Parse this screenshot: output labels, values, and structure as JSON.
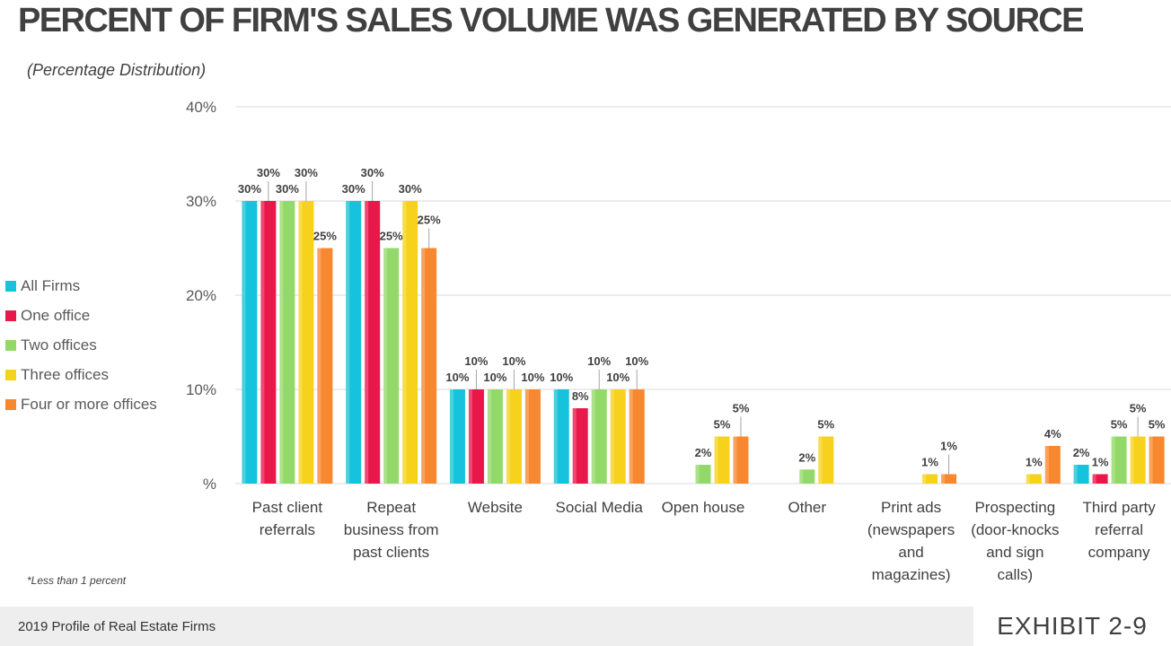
{
  "chart_data": {
    "type": "bar",
    "title": "PERCENT OF FIRM'S SALES VOLUME WAS GENERATED BY SOURCE",
    "subtitle": "(Percentage Distribution)",
    "xlabel": "",
    "ylabel": "",
    "ylim": [
      0,
      40
    ],
    "yticks": [
      0,
      10,
      20,
      30,
      40
    ],
    "ytick_labels": [
      "%",
      "10%",
      "20%",
      "30%",
      "40%"
    ],
    "grid": true,
    "legend_position": "left",
    "categories": [
      [
        "Past client",
        "referrals"
      ],
      [
        "Repeat",
        "business from",
        "past clients"
      ],
      [
        "Website"
      ],
      [
        "Social Media"
      ],
      [
        "Open house"
      ],
      [
        "Other"
      ],
      [
        "Print ads",
        "(newspapers",
        "and",
        "magazines)"
      ],
      [
        "Prospecting",
        "(door-knocks",
        "and sign",
        "calls)"
      ],
      [
        "Third party",
        "referral",
        "company"
      ]
    ],
    "series": [
      {
        "name": "All Firms",
        "color": "#17c3dc",
        "values": [
          30,
          30,
          10,
          10,
          null,
          null,
          null,
          null,
          2
        ],
        "labels": [
          "30%",
          "30%",
          "10%",
          "10%",
          "",
          "",
          "",
          "",
          "2%"
        ]
      },
      {
        "name": "One office",
        "color": "#e8184a",
        "values": [
          30,
          30,
          10,
          8,
          null,
          null,
          null,
          null,
          1
        ],
        "labels": [
          "30%",
          "30%",
          "10%",
          "8%",
          "",
          "",
          "",
          "",
          "1%"
        ]
      },
      {
        "name": "Two offices",
        "color": "#93d96a",
        "values": [
          30,
          25,
          10,
          10,
          2,
          1.5,
          null,
          null,
          5
        ],
        "labels": [
          "30%",
          "25%",
          "10%",
          "10%",
          "2%",
          "2%",
          "",
          "",
          "5%"
        ]
      },
      {
        "name": "Three offices",
        "color": "#f6d21c",
        "values": [
          30,
          30,
          10,
          10,
          5,
          5,
          1,
          1,
          5
        ],
        "labels": [
          "30%",
          "30%",
          "10%",
          "10%",
          "5%",
          "5%",
          "1%",
          "1%",
          "5%"
        ]
      },
      {
        "name": "Four or more offices",
        "color": "#f7882f",
        "values": [
          25,
          25,
          10,
          10,
          5,
          null,
          1,
          4,
          5
        ],
        "labels": [
          "25%",
          "25%",
          "10%",
          "10%",
          "5%",
          "",
          "1%",
          "4%",
          "5%"
        ]
      }
    ],
    "footnote": "*Less than 1 percent"
  },
  "footer": {
    "source": "2019 Profile of Real Estate Firms",
    "exhibit": "EXHIBIT 2-9"
  },
  "colors": {
    "title": "#404040",
    "axis_text": "#595959",
    "grid": "#d9d9d9",
    "footer_bg": "#eeeeee"
  }
}
